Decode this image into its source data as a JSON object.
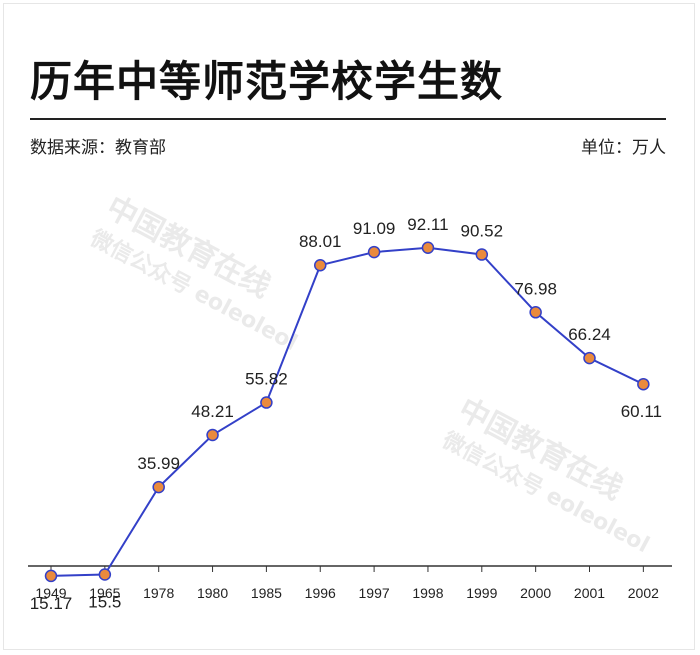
{
  "header": {
    "title": "历年中等师范学校学生数",
    "source": "数据来源：教育部",
    "unit": "单位：万人"
  },
  "watermark": {
    "main": "中国教育在线",
    "sub": "微信公众号 eoleoleol"
  },
  "colors": {
    "line": "#3340c8",
    "marker_fill": "#ea8a3c",
    "marker_stroke": "#3340c8",
    "axis": "#333333",
    "text": "#222222"
  },
  "chart_data": {
    "type": "line",
    "categories": [
      "1949",
      "1965",
      "1978",
      "1980",
      "1985",
      "1996",
      "1997",
      "1998",
      "1999",
      "2000",
      "2001",
      "2002"
    ],
    "values": [
      15.17,
      15.5,
      35.99,
      48.21,
      55.82,
      88.01,
      91.09,
      92.11,
      90.52,
      76.98,
      66.24,
      60.11
    ],
    "data_labels": [
      "15.17",
      "15.5",
      "35.99",
      "48.21",
      "55.82",
      "88.01",
      "91.09",
      "92.11",
      "90.52",
      "76.98",
      "66.24",
      "60.11"
    ],
    "title": "历年中等师范学校学生数",
    "xlabel": "",
    "ylabel": "",
    "grid": false,
    "legend": "none"
  }
}
